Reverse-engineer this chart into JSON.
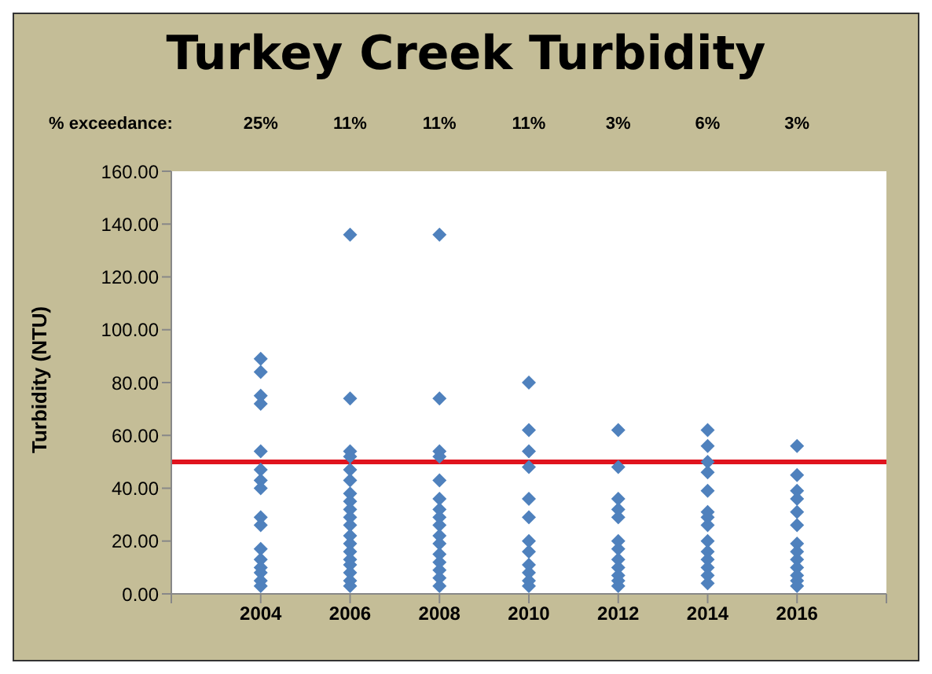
{
  "chart_data": {
    "type": "scatter",
    "title": "Turkey Creek Turbidity",
    "ylabel": "Turbidity (NTU)",
    "annotations": [
      "% exceedance:",
      "25%",
      "11%",
      "11%",
      "11%",
      "3%",
      "6%",
      "3%"
    ],
    "series": [
      {
        "color": "#4f81bd",
        "x": [
          2004,
          2004,
          2004,
          2004,
          2004,
          2004,
          2004,
          2004,
          2004,
          2004,
          2004,
          2004,
          2004,
          2004,
          2004,
          2004,
          2006,
          2006,
          2006,
          2006,
          2006,
          2006,
          2006,
          2006,
          2006,
          2006,
          2006,
          2006,
          2006,
          2006,
          2006,
          2006,
          2006,
          2006,
          2006,
          2008,
          2008,
          2008,
          2008,
          2008,
          2008,
          2008,
          2008,
          2008,
          2008,
          2008,
          2008,
          2008,
          2008,
          2008,
          2008,
          2010,
          2010,
          2010,
          2010,
          2010,
          2010,
          2010,
          2010,
          2010,
          2010,
          2010,
          2010,
          2012,
          2012,
          2012,
          2012,
          2012,
          2012,
          2012,
          2012,
          2012,
          2012,
          2012,
          2012,
          2014,
          2014,
          2014,
          2014,
          2014,
          2014,
          2014,
          2014,
          2014,
          2014,
          2014,
          2014,
          2014,
          2014,
          2016,
          2016,
          2016,
          2016,
          2016,
          2016,
          2016,
          2016,
          2016,
          2016,
          2016,
          2016,
          2016
        ],
        "values": [
          89,
          84,
          75,
          72,
          54,
          47,
          43,
          40,
          29,
          26,
          17,
          13,
          10,
          8,
          5,
          3,
          136,
          74,
          54,
          52,
          47,
          43,
          38,
          35,
          32,
          29,
          26,
          22,
          19,
          16,
          13,
          11,
          8,
          5,
          3,
          136,
          74,
          54,
          52,
          43,
          36,
          32,
          29,
          26,
          22,
          19,
          15,
          12,
          9,
          6,
          3,
          80,
          62,
          54,
          48,
          36,
          29,
          20,
          16,
          11,
          8,
          5,
          3,
          62,
          48,
          36,
          32,
          29,
          20,
          17,
          13,
          10,
          7,
          5,
          3,
          62,
          56,
          50,
          46,
          39,
          31,
          29,
          26,
          20,
          16,
          13,
          10,
          7,
          4,
          56,
          45,
          39,
          36,
          31,
          26,
          19,
          16,
          13,
          10,
          7,
          5,
          3
        ]
      }
    ],
    "marker": "diamond",
    "xlim": [
      2002,
      2018
    ],
    "xticks": [
      {
        "value": 2002,
        "label": null
      },
      2004,
      2006,
      2008,
      2010,
      2012,
      2014,
      2016,
      {
        "value": 2018,
        "label": null
      }
    ],
    "ylim": [
      0,
      160
    ],
    "yticks": [
      {
        "value": 0,
        "label": "0.00"
      },
      {
        "value": 20,
        "label": "20.00"
      },
      {
        "value": 40,
        "label": "40.00"
      },
      {
        "value": 60,
        "label": "60.00"
      },
      {
        "value": 80,
        "label": "80.00"
      },
      {
        "value": 100,
        "label": "100.00"
      },
      {
        "value": 120,
        "label": "120.00"
      },
      {
        "value": 140,
        "label": "140.00"
      },
      {
        "value": 160,
        "label": "160.00"
      }
    ],
    "ref_lines": [
      {
        "axis": "y",
        "value": 50,
        "color": "#e0141e"
      }
    ]
  }
}
